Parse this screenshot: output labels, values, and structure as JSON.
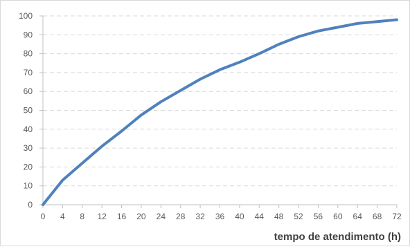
{
  "chart_data": {
    "type": "line",
    "title": "",
    "xlabel": "tempo de atendimento (h)",
    "ylabel": "",
    "xlim": [
      0,
      72
    ],
    "ylim": [
      0,
      100
    ],
    "x_ticks": [
      0,
      4,
      8,
      12,
      16,
      20,
      24,
      28,
      32,
      36,
      40,
      44,
      48,
      52,
      56,
      60,
      64,
      68,
      72
    ],
    "y_ticks": [
      0,
      10,
      20,
      30,
      40,
      50,
      60,
      70,
      80,
      90,
      100
    ],
    "grid": "horizontal dashed",
    "legend": "none",
    "series": [
      {
        "color": "#4f81bd",
        "x": [
          0,
          4,
          8,
          12,
          16,
          20,
          24,
          28,
          32,
          36,
          40,
          44,
          48,
          52,
          56,
          60,
          64,
          68,
          72
        ],
        "y": [
          0,
          13,
          22,
          31,
          39,
          47.5,
          54.5,
          60.5,
          66.5,
          71.5,
          75.5,
          80,
          85,
          89,
          92,
          94,
          96,
          97,
          98
        ]
      }
    ]
  }
}
